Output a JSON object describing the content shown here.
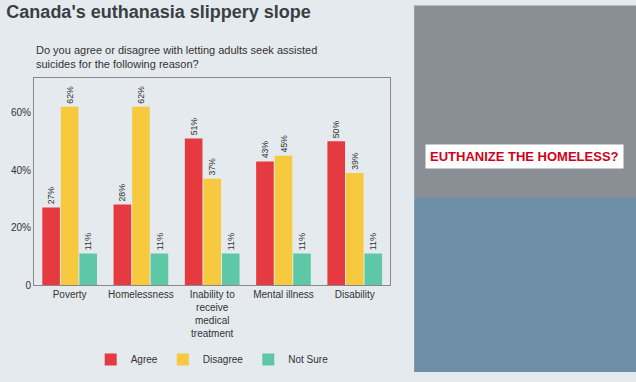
{
  "chart_data": {
    "type": "bar",
    "title": "Canada's euthanasia slippery slope",
    "subtitle": "Do you agree or disagree with letting adults seek assisted suicides for the following reason?",
    "categories": [
      "Poverty",
      "Homelessness",
      "Inability to receive medical treatment",
      "Mental illness",
      "Disability"
    ],
    "series": [
      {
        "name": "Agree",
        "color": "#e53a3f",
        "values": [
          27,
          28,
          51,
          43,
          50
        ],
        "value_labels": [
          "27%",
          "28%",
          "51%",
          "43%",
          "50%"
        ]
      },
      {
        "name": "Disagree",
        "color": "#f6c93f",
        "values": [
          62,
          62,
          37,
          45,
          39
        ],
        "value_labels": [
          "62%",
          "62%",
          "37%",
          "45%",
          "39%"
        ]
      },
      {
        "name": "Not Sure",
        "color": "#5ec8a6",
        "values": [
          11,
          11,
          11,
          11,
          11
        ],
        "value_labels": [
          "11%",
          "11%",
          "11%",
          "11%",
          "11%"
        ]
      }
    ],
    "ylim": [
      0,
      72
    ],
    "yticks": [
      0,
      {
        "value": 20,
        "label": "20%"
      },
      {
        "value": 40,
        "label": "40%"
      },
      {
        "value": 60,
        "label": "60%"
      }
    ],
    "grid": false,
    "legend": "bottom",
    "data_labels": true,
    "annotations": [
      "EUTHANIZE THE HOMELESS?"
    ]
  }
}
